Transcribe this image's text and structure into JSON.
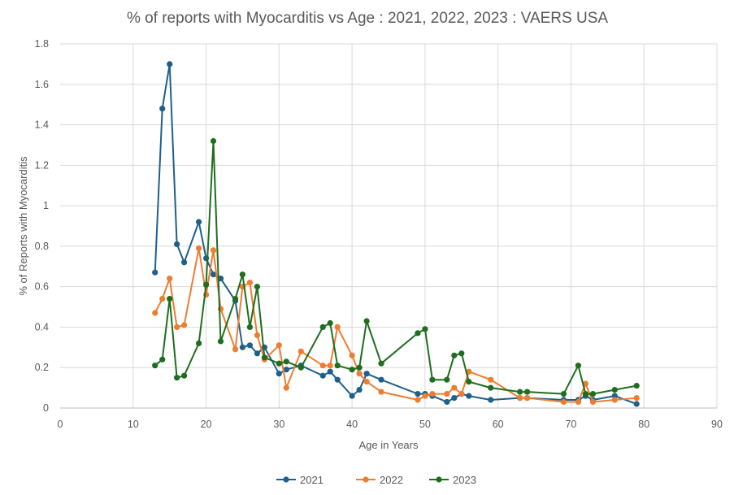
{
  "chart_data": {
    "type": "line",
    "title": "% of reports with Myocarditis vs Age : 2021, 2022, 2023 : VAERS USA",
    "xlabel": "Age in Years",
    "ylabel": "% of Reports with Myocarditis",
    "xlim": [
      0,
      90
    ],
    "ylim": [
      0,
      1.8
    ],
    "x_ticks": [
      "0",
      "10",
      "20",
      "30",
      "40",
      "50",
      "60",
      "70",
      "80",
      "90"
    ],
    "y_ticks": [
      "0",
      "0.2",
      "0.4",
      "0.6",
      "0.8",
      "1",
      "1.2",
      "1.4",
      "1.6",
      "1.8"
    ],
    "grid": true,
    "legend_position": "bottom",
    "series": [
      {
        "name": "2021",
        "color": "#1f5f8b",
        "points": [
          [
            13,
            0.67
          ],
          [
            14,
            1.48
          ],
          [
            15,
            1.7
          ],
          [
            16,
            0.81
          ],
          [
            17,
            0.72
          ],
          [
            19,
            0.92
          ],
          [
            20,
            0.74
          ],
          [
            21,
            0.66
          ],
          [
            22,
            0.64
          ],
          [
            24,
            0.53
          ],
          [
            25,
            0.3
          ],
          [
            26,
            0.31
          ],
          [
            27,
            0.27
          ],
          [
            28,
            0.3
          ],
          [
            30,
            0.17
          ],
          [
            31,
            0.19
          ],
          [
            33,
            0.21
          ],
          [
            36,
            0.16
          ],
          [
            37,
            0.18
          ],
          [
            38,
            0.14
          ],
          [
            40,
            0.06
          ],
          [
            41,
            0.09
          ],
          [
            42,
            0.17
          ],
          [
            44,
            0.14
          ],
          [
            49,
            0.07
          ],
          [
            50,
            0.07
          ],
          [
            51,
            0.06
          ],
          [
            53,
            0.03
          ],
          [
            54,
            0.05
          ],
          [
            55,
            0.07
          ],
          [
            56,
            0.06
          ],
          [
            59,
            0.04
          ],
          [
            63,
            0.05
          ],
          [
            64,
            0.05
          ],
          [
            69,
            0.04
          ],
          [
            71,
            0.04
          ],
          [
            72,
            0.06
          ],
          [
            73,
            0.04
          ],
          [
            76,
            0.06
          ],
          [
            79,
            0.02
          ]
        ]
      },
      {
        "name": "2022",
        "color": "#ed7d31",
        "points": [
          [
            13,
            0.47
          ],
          [
            14,
            0.54
          ],
          [
            15,
            0.64
          ],
          [
            16,
            0.4
          ],
          [
            17,
            0.41
          ],
          [
            19,
            0.79
          ],
          [
            20,
            0.56
          ],
          [
            21,
            0.78
          ],
          [
            22,
            0.49
          ],
          [
            24,
            0.29
          ],
          [
            25,
            0.6
          ],
          [
            26,
            0.62
          ],
          [
            27,
            0.36
          ],
          [
            28,
            0.24
          ],
          [
            30,
            0.31
          ],
          [
            31,
            0.1
          ],
          [
            33,
            0.28
          ],
          [
            36,
            0.21
          ],
          [
            37,
            0.21
          ],
          [
            38,
            0.4
          ],
          [
            40,
            0.26
          ],
          [
            41,
            0.17
          ],
          [
            42,
            0.13
          ],
          [
            44,
            0.08
          ],
          [
            49,
            0.04
          ],
          [
            50,
            0.06
          ],
          [
            51,
            0.07
          ],
          [
            53,
            0.07
          ],
          [
            54,
            0.1
          ],
          [
            55,
            0.07
          ],
          [
            56,
            0.18
          ],
          [
            59,
            0.14
          ],
          [
            63,
            0.05
          ],
          [
            64,
            0.05
          ],
          [
            69,
            0.03
          ],
          [
            71,
            0.03
          ],
          [
            72,
            0.12
          ],
          [
            73,
            0.03
          ],
          [
            76,
            0.04
          ],
          [
            79,
            0.05
          ]
        ]
      },
      {
        "name": "2023",
        "color": "#1e6e1e",
        "points": [
          [
            13,
            0.21
          ],
          [
            14,
            0.24
          ],
          [
            15,
            0.54
          ],
          [
            16,
            0.15
          ],
          [
            17,
            0.16
          ],
          [
            19,
            0.32
          ],
          [
            20,
            0.61
          ],
          [
            21,
            1.32
          ],
          [
            22,
            0.33
          ],
          [
            24,
            0.54
          ],
          [
            25,
            0.66
          ],
          [
            26,
            0.4
          ],
          [
            27,
            0.6
          ],
          [
            28,
            0.25
          ],
          [
            30,
            0.22
          ],
          [
            31,
            0.23
          ],
          [
            33,
            0.2
          ],
          [
            36,
            0.4
          ],
          [
            37,
            0.42
          ],
          [
            38,
            0.21
          ],
          [
            40,
            0.19
          ],
          [
            41,
            0.2
          ],
          [
            42,
            0.43
          ],
          [
            44,
            0.22
          ],
          [
            49,
            0.37
          ],
          [
            50,
            0.39
          ],
          [
            51,
            0.14
          ],
          [
            53,
            0.14
          ],
          [
            54,
            0.26
          ],
          [
            55,
            0.27
          ],
          [
            56,
            0.13
          ],
          [
            59,
            0.1
          ],
          [
            63,
            0.08
          ],
          [
            64,
            0.08
          ],
          [
            69,
            0.07
          ],
          [
            71,
            0.21
          ],
          [
            72,
            0.07
          ],
          [
            73,
            0.07
          ],
          [
            76,
            0.09
          ],
          [
            79,
            0.11
          ]
        ]
      }
    ]
  }
}
